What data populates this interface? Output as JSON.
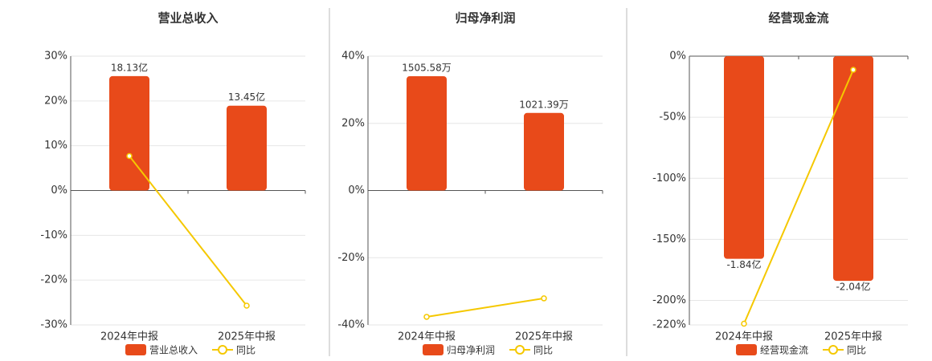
{
  "chart_data": [
    {
      "type": "bar",
      "title": "营业总收入",
      "categories": [
        "2024年中报",
        "2025年中报"
      ],
      "series": [
        {
          "name": "营业总收入",
          "color": "#e84a1a",
          "axis": "y2",
          "values": [
            18.13,
            13.45
          ],
          "value_labels": [
            "18.13亿",
            "13.45亿"
          ]
        },
        {
          "name": "同比",
          "type": "line",
          "color": "#f5c800",
          "values": [
            7.7,
            -25.7
          ]
        }
      ],
      "ylim": [
        -30,
        30
      ],
      "yticks": [
        {
          "value": 30,
          "label": "30%"
        },
        {
          "value": 20,
          "label": "20%"
        },
        {
          "value": 10,
          "label": "10%"
        },
        {
          "value": 0,
          "label": "0%"
        },
        {
          "value": -10,
          "label": "-10%"
        },
        {
          "value": -20,
          "label": "-20%"
        },
        {
          "value": -30,
          "label": "-30%"
        }
      ],
      "y2lim": [
        -21.3,
        21.3
      ],
      "grid": true
    },
    {
      "type": "bar",
      "title": "归母净利润",
      "categories": [
        "2024年中报",
        "2025年中报"
      ],
      "series": [
        {
          "name": "归母净利润",
          "color": "#e84a1a",
          "axis": "y2",
          "values": [
            1505.58,
            1021.39
          ],
          "value_labels": [
            "1505.58万",
            "1021.39万"
          ]
        },
        {
          "name": "同比",
          "type": "line",
          "color": "#f5c800",
          "values": [
            -37.6,
            -32.1
          ]
        }
      ],
      "ylim": [
        -40,
        40
      ],
      "yticks": [
        {
          "value": 40,
          "label": "40%"
        },
        {
          "value": 20,
          "label": "20%"
        },
        {
          "value": 0,
          "label": "0%"
        },
        {
          "value": -20,
          "label": "-20%"
        },
        {
          "value": -40,
          "label": "-40%"
        }
      ],
      "y2lim": [
        -1769,
        1769
      ],
      "grid": true
    },
    {
      "type": "bar",
      "title": "经营现金流",
      "categories": [
        "2024年中报",
        "2025年中报"
      ],
      "series": [
        {
          "name": "经营现金流",
          "color": "#e84a1a",
          "axis": "y2",
          "values": [
            -1.84,
            -2.04
          ],
          "value_labels": [
            "-1.84亿",
            "-2.04亿"
          ]
        },
        {
          "name": "同比",
          "type": "line",
          "color": "#f5c800",
          "values": [
            -219,
            -11.2
          ]
        }
      ],
      "ylim": [
        -220,
        0
      ],
      "yticks": [
        {
          "value": 0,
          "label": "0%"
        },
        {
          "value": -50,
          "label": "-50%"
        },
        {
          "value": -100,
          "label": "-100%"
        },
        {
          "value": -150,
          "label": "-150%"
        },
        {
          "value": -200,
          "label": "-200%"
        },
        {
          "value": -220,
          "label": "-220%"
        }
      ],
      "y2lim": [
        -2.44,
        0
      ],
      "grid": true
    }
  ]
}
